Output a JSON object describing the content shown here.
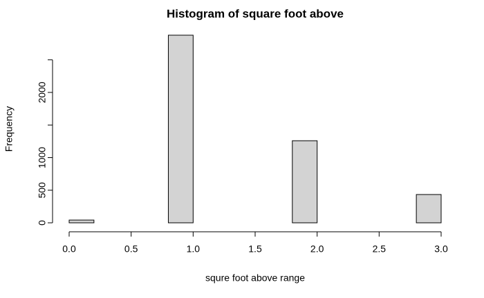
{
  "chart_data": {
    "type": "histogram",
    "title": "Histogram of square foot above",
    "x_label": "squre foot above range",
    "y_label": "Frequency",
    "bins": [
      0,
      0.2,
      0.4,
      0.6,
      0.8,
      1.0,
      1.2,
      1.4,
      1.6,
      1.8,
      2.0,
      2.2,
      2.4,
      2.6,
      2.8,
      3.0
    ],
    "counts": [
      42,
      0,
      0,
      0,
      2878,
      0,
      0,
      0,
      0,
      1259,
      0,
      0,
      0,
      0,
      434
    ],
    "color": "#d3d3d3",
    "xlim": [
      0,
      3
    ],
    "ylim": [
      0,
      2878
    ],
    "xticks": [
      {
        "value": 0,
        "label": "0.0"
      },
      0.5,
      {
        "value": 1,
        "label": "1.0"
      },
      1.5,
      {
        "value": 2,
        "label": "2.0"
      },
      2.5,
      {
        "value": 3,
        "label": "3.0"
      }
    ],
    "yticks": [
      0,
      500,
      1000,
      {
        "value": 1500,
        "label": null
      },
      2000,
      {
        "value": 2500,
        "label": null
      }
    ]
  }
}
